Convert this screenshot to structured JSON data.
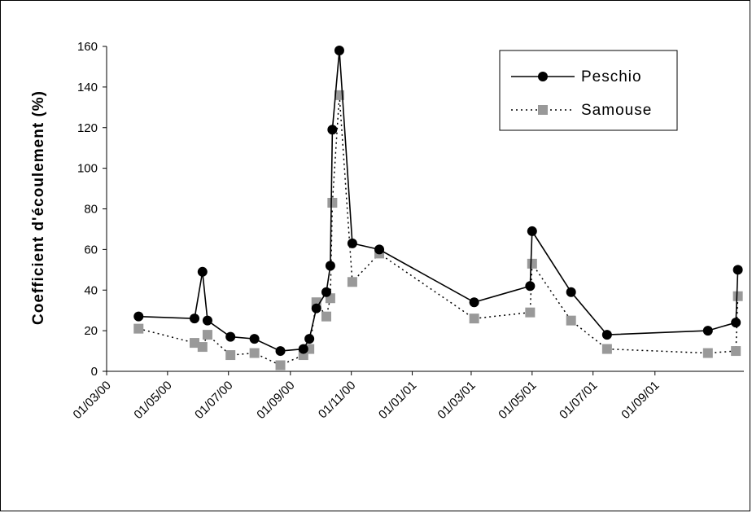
{
  "chart_data": {
    "type": "line",
    "title": "",
    "xlabel": "",
    "ylabel": "Coefficient d'écoulement (%)",
    "ylim": [
      0,
      160
    ],
    "yticks": [
      0,
      20,
      40,
      60,
      80,
      100,
      120,
      140,
      160
    ],
    "xlim": [
      "2000-03-01",
      "2001-11-29"
    ],
    "xticks": [
      {
        "date": "2000-03-01",
        "label": "01/03/00"
      },
      {
        "date": "2000-05-01",
        "label": "01/05/00"
      },
      {
        "date": "2000-07-01",
        "label": "01/07/00"
      },
      {
        "date": "2000-09-01",
        "label": "01/09/00"
      },
      {
        "date": "2000-11-01",
        "label": "01/11/00"
      },
      {
        "date": "2001-01-01",
        "label": "01/01/01"
      },
      {
        "date": "2001-03-01",
        "label": "01/03/01"
      },
      {
        "date": "2001-05-01",
        "label": "01/05/01"
      },
      {
        "date": "2001-07-01",
        "label": "01/07/01"
      },
      {
        "date": "2001-09-01",
        "label": "01/09/01"
      }
    ],
    "grid": false,
    "legend_position": "top-right",
    "series": [
      {
        "name": "Peschio",
        "style": "solid",
        "marker": "circle",
        "color": "#000000",
        "points": [
          {
            "x": "2000-04-02",
            "y": 27
          },
          {
            "x": "2000-05-28",
            "y": 26
          },
          {
            "x": "2000-06-05",
            "y": 49
          },
          {
            "x": "2000-06-10",
            "y": 25
          },
          {
            "x": "2000-07-03",
            "y": 17
          },
          {
            "x": "2000-07-27",
            "y": 16
          },
          {
            "x": "2000-08-22",
            "y": 10
          },
          {
            "x": "2000-09-14",
            "y": 11
          },
          {
            "x": "2000-09-20",
            "y": 16
          },
          {
            "x": "2000-09-27",
            "y": 31
          },
          {
            "x": "2000-10-07",
            "y": 39
          },
          {
            "x": "2000-10-11",
            "y": 52
          },
          {
            "x": "2000-10-13",
            "y": 119
          },
          {
            "x": "2000-10-20",
            "y": 158
          },
          {
            "x": "2000-11-02",
            "y": 63
          },
          {
            "x": "2000-11-29",
            "y": 60
          },
          {
            "x": "2001-03-04",
            "y": 34
          },
          {
            "x": "2001-04-29",
            "y": 42
          },
          {
            "x": "2001-05-01",
            "y": 69
          },
          {
            "x": "2001-06-09",
            "y": 39
          },
          {
            "x": "2001-07-15",
            "y": 18
          },
          {
            "x": "2001-10-24",
            "y": 20
          },
          {
            "x": "2001-11-21",
            "y": 24
          },
          {
            "x": "2001-11-23",
            "y": 50
          }
        ]
      },
      {
        "name": "Samouse",
        "style": "dotted",
        "marker": "square",
        "color": "#999999",
        "points": [
          {
            "x": "2000-04-02",
            "y": 21
          },
          {
            "x": "2000-05-28",
            "y": 14
          },
          {
            "x": "2000-06-05",
            "y": 12
          },
          {
            "x": "2000-06-10",
            "y": 18
          },
          {
            "x": "2000-07-03",
            "y": 8
          },
          {
            "x": "2000-07-27",
            "y": 9
          },
          {
            "x": "2000-08-22",
            "y": 3
          },
          {
            "x": "2000-09-14",
            "y": 8
          },
          {
            "x": "2000-09-20",
            "y": 11
          },
          {
            "x": "2000-09-27",
            "y": 34
          },
          {
            "x": "2000-10-07",
            "y": 27
          },
          {
            "x": "2000-10-11",
            "y": 36
          },
          {
            "x": "2000-10-13",
            "y": 83
          },
          {
            "x": "2000-10-20",
            "y": 136
          },
          {
            "x": "2000-11-02",
            "y": 44
          },
          {
            "x": "2000-11-29",
            "y": 58
          },
          {
            "x": "2001-03-04",
            "y": 26
          },
          {
            "x": "2001-04-29",
            "y": 29
          },
          {
            "x": "2001-05-01",
            "y": 53
          },
          {
            "x": "2001-06-09",
            "y": 25
          },
          {
            "x": "2001-07-15",
            "y": 11
          },
          {
            "x": "2001-10-24",
            "y": 9
          },
          {
            "x": "2001-11-21",
            "y": 10
          },
          {
            "x": "2001-11-23",
            "y": 37
          }
        ]
      }
    ]
  }
}
